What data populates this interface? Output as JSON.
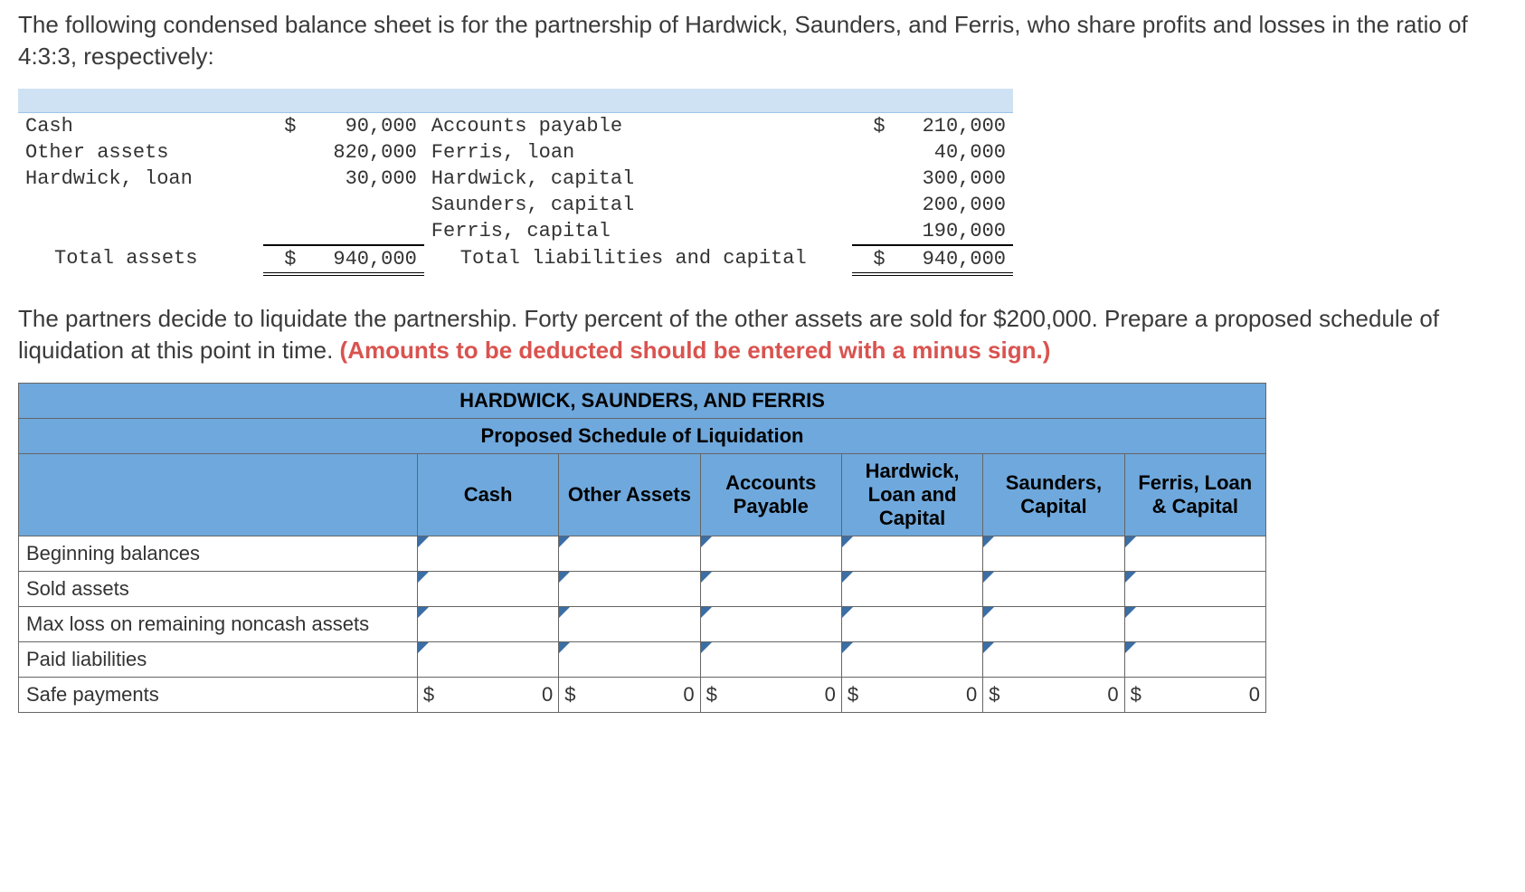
{
  "intro_text": "The following condensed balance sheet is for the partnership of Hardwick, Saunders, and Ferris, who share profits and losses in the ratio of 4:3:3, respectively:",
  "balance_sheet": {
    "rows": [
      {
        "left_label": "Cash",
        "left_d": "$",
        "left_val": "90,000",
        "right_label": "Accounts payable",
        "right_d": "$",
        "right_val": "210,000"
      },
      {
        "left_label": "Other assets",
        "left_d": "",
        "left_val": "820,000",
        "right_label": "Ferris, loan",
        "right_d": "",
        "right_val": "40,000"
      },
      {
        "left_label": "Hardwick, loan",
        "left_d": "",
        "left_val": "30,000",
        "right_label": "Hardwick, capital",
        "right_d": "",
        "right_val": "300,000"
      },
      {
        "left_label": "",
        "left_d": "",
        "left_val": "",
        "right_label": "Saunders, capital",
        "right_d": "",
        "right_val": "200,000"
      },
      {
        "left_label": "",
        "left_d": "",
        "left_val": "",
        "right_label": "Ferris, capital",
        "right_d": "",
        "right_val": "190,000"
      }
    ],
    "total": {
      "left_label": "Total assets",
      "left_d": "$",
      "left_val": "940,000",
      "right_label": "Total liabilities and capital",
      "right_d": "$",
      "right_val": "940,000"
    }
  },
  "instruction_text_plain": "The partners decide to liquidate the partnership. Forty percent of the other assets are sold for $200,000. Prepare a proposed schedule of liquidation at this point in time. ",
  "instruction_text_red": "(Amounts to be deducted should be entered with a minus sign.)",
  "liq": {
    "title1": "HARDWICK, SAUNDERS, AND FERRIS",
    "title2": "Proposed Schedule of Liquidation",
    "columns": [
      "Cash",
      "Other Assets",
      "Accounts Payable",
      "Hardwick, Loan and Capital",
      "Saunders, Capital",
      "Ferris, Loan & Capital"
    ],
    "row_labels": [
      "Beginning balances",
      "Sold assets",
      "Max loss on remaining noncash assets",
      "Paid liabilities",
      "Safe payments"
    ],
    "tri_rows": [
      0,
      1,
      2,
      3
    ],
    "safe_row": {
      "dollar": "$",
      "value": "0"
    }
  }
}
